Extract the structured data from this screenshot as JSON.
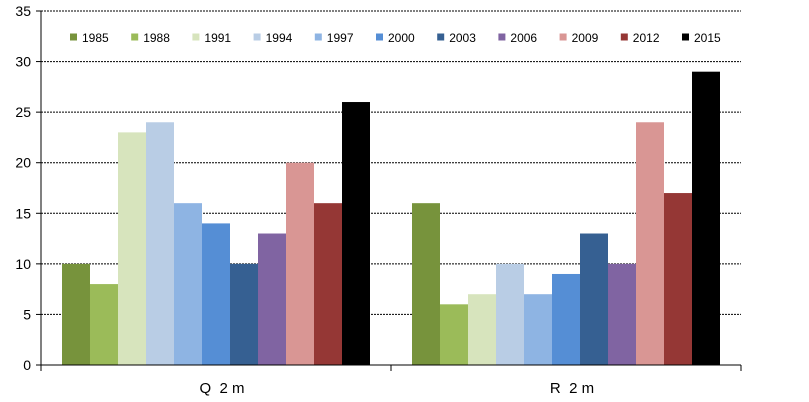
{
  "chart_data": {
    "type": "bar",
    "title": "",
    "xlabel": "",
    "ylabel": "",
    "ylim": [
      0,
      35
    ],
    "yticks": [
      0,
      5,
      10,
      15,
      20,
      25,
      30,
      35
    ],
    "grid": true,
    "legend_position": "top",
    "categories": [
      "Q  2 m",
      "R  2 m"
    ],
    "series": [
      {
        "name": "1985",
        "color": "#77933c",
        "values": [
          10,
          16
        ]
      },
      {
        "name": "1988",
        "color": "#9bbb59",
        "values": [
          8,
          6
        ]
      },
      {
        "name": "1991",
        "color": "#d7e4bd",
        "values": [
          23,
          7
        ]
      },
      {
        "name": "1994",
        "color": "#b9cde5",
        "values": [
          24,
          10
        ]
      },
      {
        "name": "1997",
        "color": "#8eb4e3",
        "values": [
          16,
          7
        ]
      },
      {
        "name": "2000",
        "color": "#558ed5",
        "values": [
          14,
          9
        ]
      },
      {
        "name": "2003",
        "color": "#366092",
        "values": [
          10,
          13
        ]
      },
      {
        "name": "2006",
        "color": "#8064a2",
        "values": [
          13,
          10
        ]
      },
      {
        "name": "2009",
        "color": "#d99694",
        "values": [
          20,
          24
        ]
      },
      {
        "name": "2012",
        "color": "#953735",
        "values": [
          16,
          17
        ]
      },
      {
        "name": "2015",
        "color": "#000000",
        "values": [
          26,
          29
        ]
      }
    ]
  }
}
